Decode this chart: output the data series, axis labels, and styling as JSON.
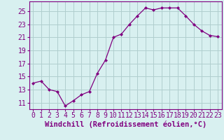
{
  "x": [
    0,
    1,
    2,
    3,
    4,
    5,
    6,
    7,
    8,
    9,
    10,
    11,
    12,
    13,
    14,
    15,
    16,
    17,
    18,
    19,
    20,
    21,
    22,
    23
  ],
  "y": [
    14.0,
    14.3,
    13.0,
    12.7,
    10.5,
    11.3,
    12.2,
    12.7,
    15.5,
    17.5,
    21.0,
    21.5,
    23.0,
    24.3,
    25.5,
    25.2,
    25.5,
    25.5,
    25.5,
    24.3,
    23.0,
    22.0,
    21.3,
    21.1
  ],
  "line_color": "#800080",
  "marker": "D",
  "marker_size": 2,
  "bg_color": "#d8f0f0",
  "grid_color": "#b0cece",
  "xlabel": "Windchill (Refroidissement éolien,°C)",
  "ylim": [
    10.0,
    26.5
  ],
  "xlim": [
    -0.5,
    23.5
  ],
  "yticks": [
    11,
    13,
    15,
    17,
    19,
    21,
    23,
    25
  ],
  "xticks": [
    0,
    1,
    2,
    3,
    4,
    5,
    6,
    7,
    8,
    9,
    10,
    11,
    12,
    13,
    14,
    15,
    16,
    17,
    18,
    19,
    20,
    21,
    22,
    23
  ],
  "xlabel_fontsize": 7.5,
  "tick_fontsize": 7.0
}
